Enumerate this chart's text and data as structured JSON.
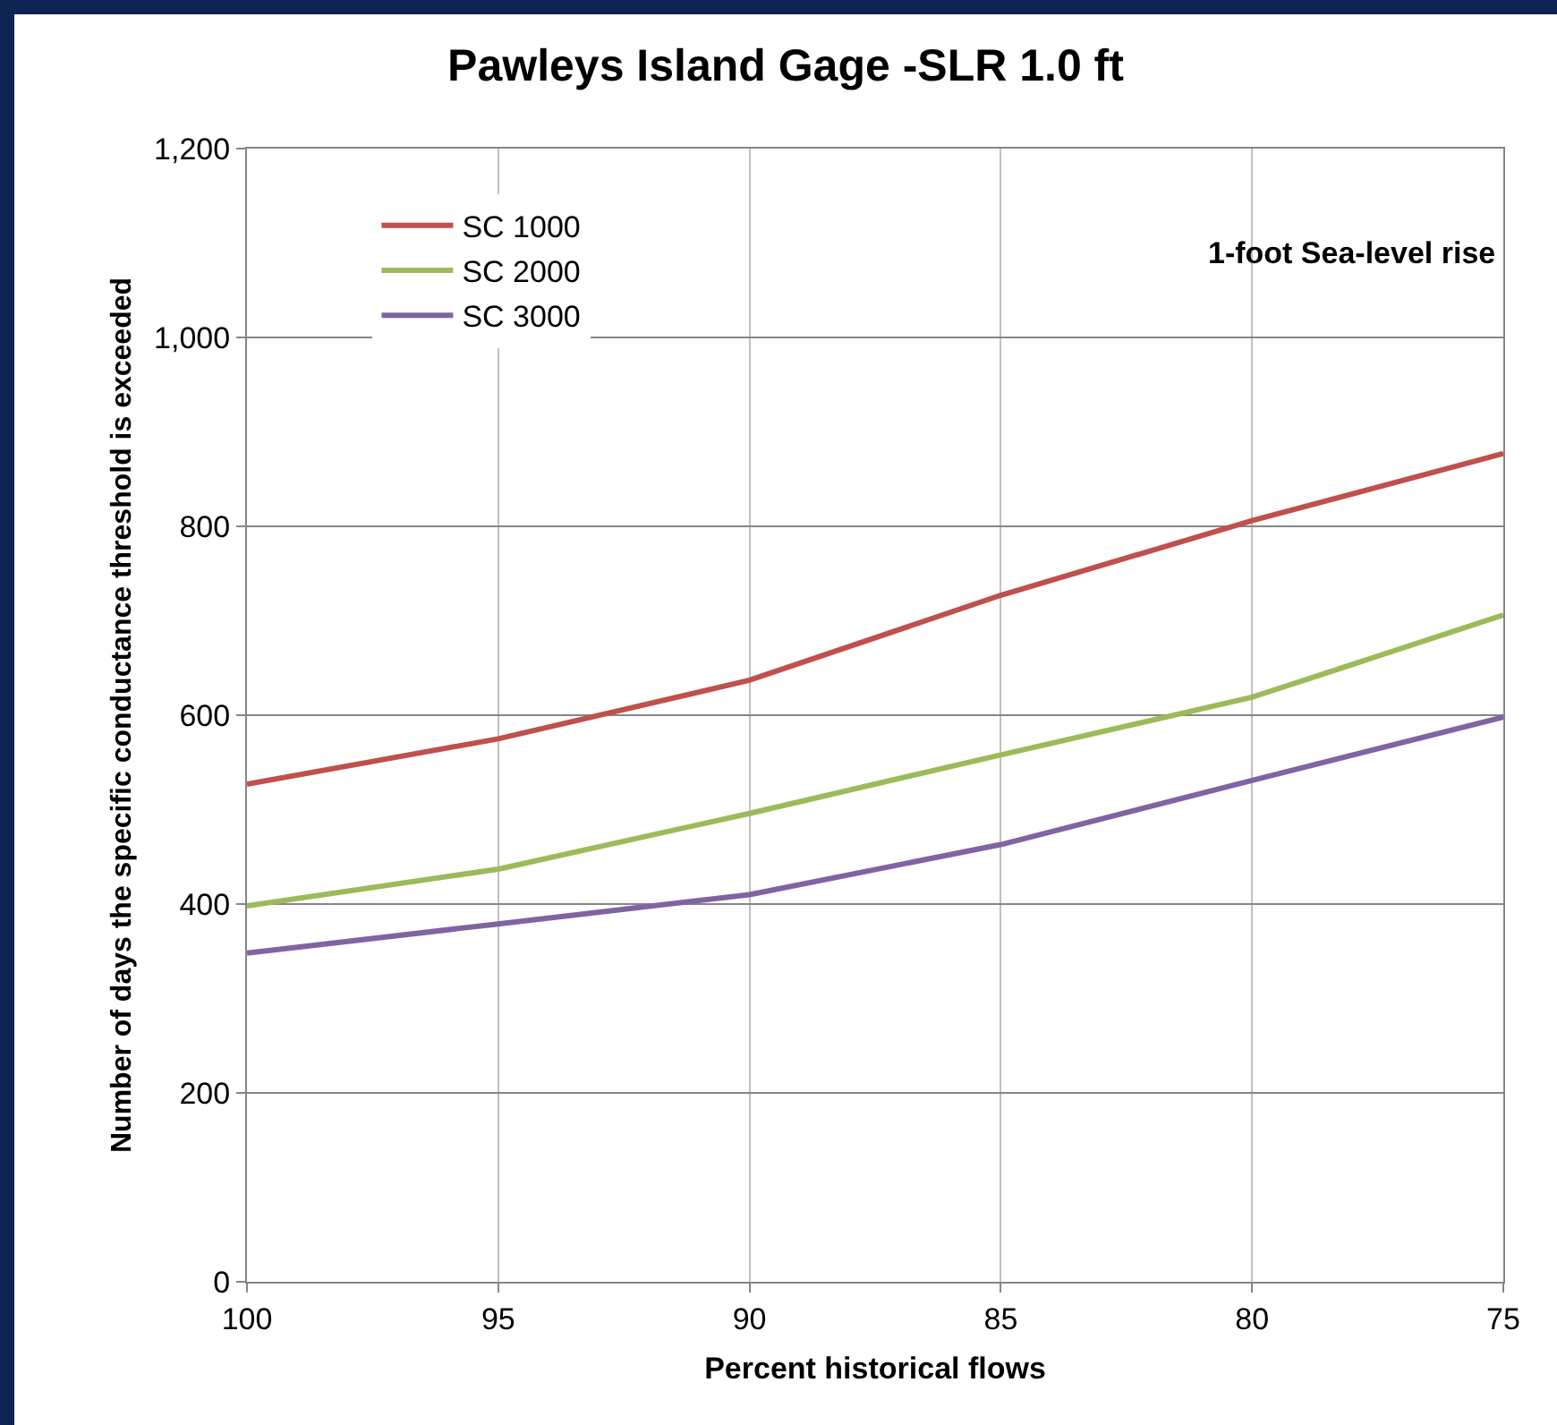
{
  "chart_data": {
    "type": "line",
    "title": "Pawleys Island Gage -SLR 1.0 ft",
    "xlabel": "Percent historical flows",
    "ylabel": "Number of days the specific conductance threshold is exceeded",
    "annotations": [
      "1-foot Sea-level rise"
    ],
    "x": [
      100,
      95,
      90,
      85,
      80,
      75
    ],
    "series": [
      {
        "name": "SC 1000",
        "color": "#c0504d",
        "values": [
          527,
          575,
          637,
          727,
          806,
          877
        ]
      },
      {
        "name": "SC 2000",
        "color": "#9bbb59",
        "values": [
          398,
          437,
          496,
          558,
          619,
          706
        ]
      },
      {
        "name": "SC 3000",
        "color": "#8064a2",
        "values": [
          348,
          379,
          410,
          463,
          531,
          598
        ]
      }
    ],
    "xlim": [
      100,
      75
    ],
    "xticks": [
      100,
      95,
      90,
      85,
      80,
      75
    ],
    "ylim": [
      0,
      1200
    ],
    "yticks": [
      {
        "value": 0,
        "label": "0"
      },
      {
        "value": 200,
        "label": "200"
      },
      {
        "value": 400,
        "label": "400"
      },
      {
        "value": 600,
        "label": "600"
      },
      {
        "value": 800,
        "label": "800"
      },
      {
        "value": 1000,
        "label": "1,000"
      },
      {
        "value": 1200,
        "label": "1,200"
      }
    ],
    "grid": true,
    "legend": "top left",
    "marker": "none",
    "line_style": "solid"
  }
}
